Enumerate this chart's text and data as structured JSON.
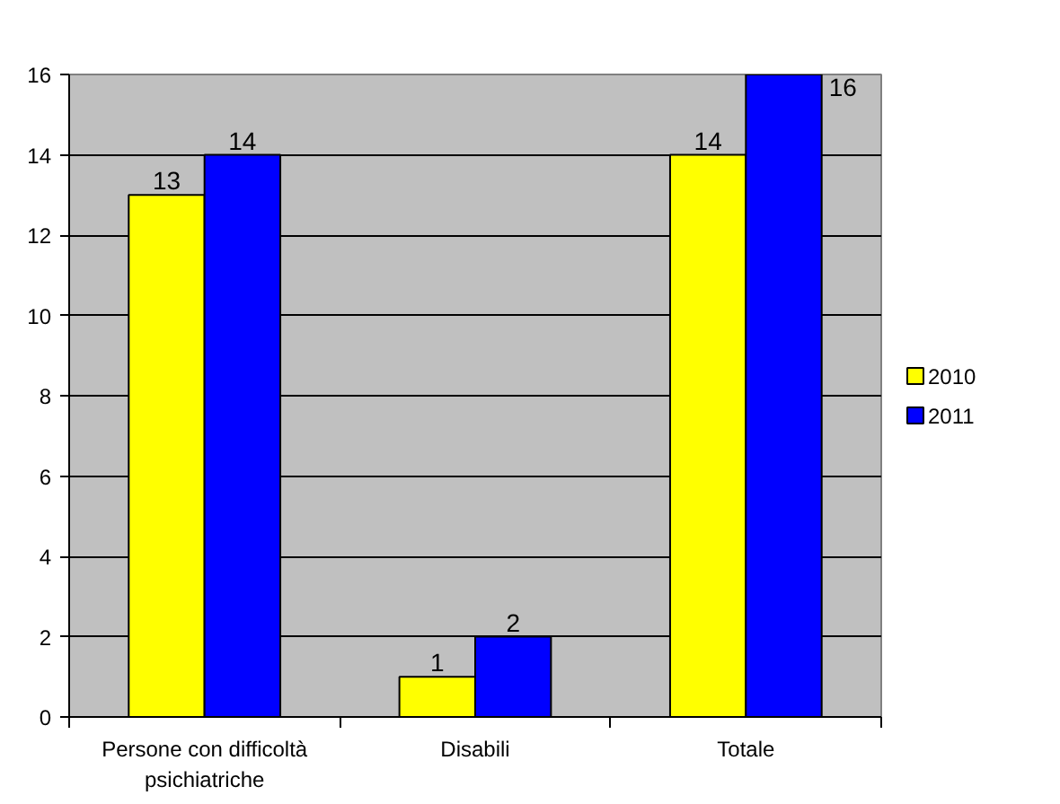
{
  "chart_data": {
    "type": "bar",
    "categories": [
      "Persone con difficoltà psichiatriche",
      "Disabili",
      "Totale"
    ],
    "series": [
      {
        "name": "2010",
        "color": "#ffff00",
        "values": [
          13,
          1,
          14
        ]
      },
      {
        "name": "2011",
        "color": "#0000ff",
        "values": [
          14,
          2,
          16
        ]
      }
    ],
    "ylim": [
      0,
      16
    ],
    "yticks": [
      0,
      2,
      4,
      6,
      8,
      10,
      12,
      14,
      16
    ],
    "grid": "y",
    "legend": "right",
    "data_labels": true
  }
}
